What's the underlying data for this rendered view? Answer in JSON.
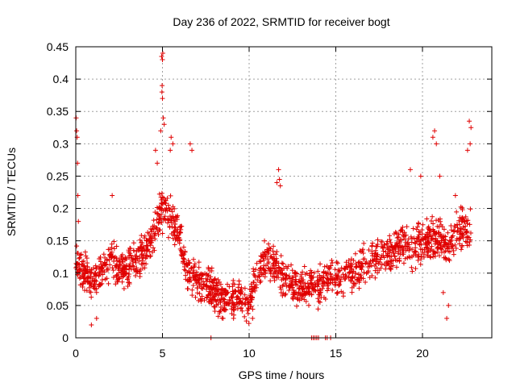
{
  "chart_data": {
    "type": "scatter",
    "title": "Day 236 of 2022, SRMTID for receiver bogt",
    "xlabel": "GPS time / hours",
    "ylabel": "SRMTID / TECUs",
    "xlim": [
      0,
      24
    ],
    "ylim": [
      0,
      0.45
    ],
    "xticks": [
      "0",
      "5",
      "10",
      "15",
      "20"
    ],
    "xtick_values": [
      0,
      5,
      10,
      15,
      20
    ],
    "yticks": [
      "0",
      "0.05",
      "0.1",
      "0.15",
      "0.2",
      "0.25",
      "0.3",
      "0.35",
      "0.4",
      "0.45"
    ],
    "ytick_values": [
      0,
      0.05,
      0.1,
      0.15,
      0.2,
      0.25,
      0.3,
      0.35,
      0.4,
      0.45
    ],
    "grid": true,
    "marker": "+",
    "color": "#e00000",
    "series": [
      {
        "name": "SRMTID",
        "trend_x": [
          0,
          0.5,
          1,
          1.5,
          2,
          2.5,
          3,
          3.5,
          4,
          4.5,
          5,
          5.5,
          6,
          6.5,
          7,
          7.5,
          8,
          8.5,
          9,
          9.5,
          10,
          10.5,
          11,
          11.5,
          12,
          12.5,
          13,
          13.5,
          14,
          14.5,
          15,
          15.5,
          16,
          16.5,
          17,
          17.5,
          18,
          18.5,
          19,
          19.5,
          20,
          20.5,
          21,
          21.5,
          22,
          22.5,
          22.8
        ],
        "trend_y": [
          0.12,
          0.1,
          0.09,
          0.1,
          0.12,
          0.11,
          0.11,
          0.12,
          0.13,
          0.16,
          0.2,
          0.19,
          0.15,
          0.1,
          0.09,
          0.08,
          0.07,
          0.06,
          0.06,
          0.06,
          0.05,
          0.1,
          0.12,
          0.11,
          0.09,
          0.08,
          0.08,
          0.08,
          0.08,
          0.09,
          0.09,
          0.1,
          0.1,
          0.11,
          0.12,
          0.13,
          0.13,
          0.14,
          0.15,
          0.14,
          0.15,
          0.15,
          0.15,
          0.14,
          0.16,
          0.17,
          0.17
        ],
        "spread": 0.035,
        "outliers": [
          {
            "x": 0.02,
            "y": 0.34
          },
          {
            "x": 0.05,
            "y": 0.32
          },
          {
            "x": 0.08,
            "y": 0.31
          },
          {
            "x": 0.1,
            "y": 0.27
          },
          {
            "x": 0.12,
            "y": 0.22
          },
          {
            "x": 0.15,
            "y": 0.18
          },
          {
            "x": 2.1,
            "y": 0.22
          },
          {
            "x": 4.95,
            "y": 0.435
          },
          {
            "x": 5.0,
            "y": 0.43
          },
          {
            "x": 5.02,
            "y": 0.44
          },
          {
            "x": 4.98,
            "y": 0.39
          },
          {
            "x": 5.0,
            "y": 0.37
          },
          {
            "x": 4.97,
            "y": 0.38
          },
          {
            "x": 5.05,
            "y": 0.34
          },
          {
            "x": 5.1,
            "y": 0.33
          },
          {
            "x": 4.9,
            "y": 0.32
          },
          {
            "x": 5.5,
            "y": 0.31
          },
          {
            "x": 5.6,
            "y": 0.3
          },
          {
            "x": 5.45,
            "y": 0.29
          },
          {
            "x": 6.6,
            "y": 0.3
          },
          {
            "x": 6.7,
            "y": 0.29
          },
          {
            "x": 4.6,
            "y": 0.29
          },
          {
            "x": 4.7,
            "y": 0.27
          },
          {
            "x": 11.7,
            "y": 0.26
          },
          {
            "x": 11.75,
            "y": 0.245
          },
          {
            "x": 11.8,
            "y": 0.235
          },
          {
            "x": 11.6,
            "y": 0.24
          },
          {
            "x": 20.7,
            "y": 0.32
          },
          {
            "x": 20.6,
            "y": 0.31
          },
          {
            "x": 20.8,
            "y": 0.3
          },
          {
            "x": 22.7,
            "y": 0.335
          },
          {
            "x": 22.8,
            "y": 0.325
          },
          {
            "x": 22.6,
            "y": 0.29
          },
          {
            "x": 22.75,
            "y": 0.3
          },
          {
            "x": 19.3,
            "y": 0.26
          },
          {
            "x": 19.9,
            "y": 0.25
          },
          {
            "x": 21.0,
            "y": 0.25
          },
          {
            "x": 21.9,
            "y": 0.22
          },
          {
            "x": 0.9,
            "y": 0.02
          },
          {
            "x": 1.2,
            "y": 0.03
          },
          {
            "x": 7.8,
            "y": 0.0
          },
          {
            "x": 13.6,
            "y": 0.0
          },
          {
            "x": 13.7,
            "y": 0.0
          },
          {
            "x": 13.8,
            "y": 0.0
          },
          {
            "x": 13.9,
            "y": 0.0
          },
          {
            "x": 14.0,
            "y": 0.0
          },
          {
            "x": 14.4,
            "y": 0.0
          },
          {
            "x": 14.5,
            "y": 0.0
          },
          {
            "x": 14.7,
            "y": 0.0
          },
          {
            "x": 21.4,
            "y": 0.03
          },
          {
            "x": 21.5,
            "y": 0.05
          },
          {
            "x": 21.2,
            "y": 0.07
          },
          {
            "x": 10.2,
            "y": 0.03
          },
          {
            "x": 9.1,
            "y": 0.03
          },
          {
            "x": 8.5,
            "y": 0.03
          }
        ]
      }
    ]
  }
}
